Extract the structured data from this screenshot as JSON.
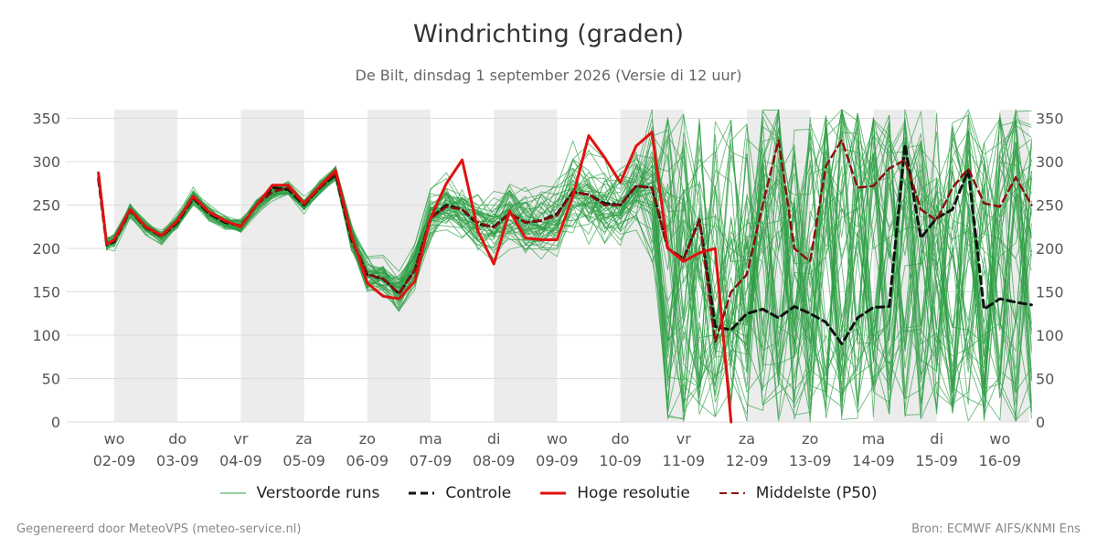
{
  "title": "Windrichting (graden)",
  "subtitle": "De Bilt, dinsdag  1 september 2026 (Versie di 12 uur)",
  "footer_left": "Gegenereerd door MeteoVPS (meteo-service.nl)",
  "footer_right": "Bron: ECMWF AIFS/KNMI Ens",
  "colors": {
    "ensemble": "#2e9e45",
    "control": "#111111",
    "high_res": "#e0120f",
    "median": "#8b0f0f",
    "weekend_band": "#ececec",
    "grid": "#dddddd"
  },
  "legend": [
    {
      "label": "Verstoorde runs",
      "style": "ensemble"
    },
    {
      "label": "Controle",
      "style": "control"
    },
    {
      "label": "Hoge resolutie",
      "style": "high_res"
    },
    {
      "label": "Middelste (P50)",
      "style": "median"
    }
  ],
  "chart_data": {
    "type": "line",
    "title": "Windrichting (graden)",
    "ylim": [
      0,
      360
    ],
    "yticks": [
      0,
      50,
      100,
      150,
      200,
      250,
      300,
      350
    ],
    "xlim": [
      -0.25,
      14.5
    ],
    "x_unit": "days since 02-09 00:00",
    "x_ticks": [
      {
        "day": "wo",
        "date": "02-09"
      },
      {
        "day": "do",
        "date": "03-09"
      },
      {
        "day": "vr",
        "date": "04-09"
      },
      {
        "day": "za",
        "date": "05-09"
      },
      {
        "day": "zo",
        "date": "06-09"
      },
      {
        "day": "ma",
        "date": "07-09"
      },
      {
        "day": "di",
        "date": "08-09"
      },
      {
        "day": "wo",
        "date": "09-09"
      },
      {
        "day": "do",
        "date": "10-09"
      },
      {
        "day": "vr",
        "date": "11-09"
      },
      {
        "day": "za",
        "date": "12-09"
      },
      {
        "day": "zo",
        "date": "13-09"
      },
      {
        "day": "ma",
        "date": "14-09"
      },
      {
        "day": "di",
        "date": "15-09"
      },
      {
        "day": "wo",
        "date": "16-09"
      }
    ],
    "shaded_days": [
      0,
      2,
      4,
      6,
      8,
      10,
      12,
      14
    ],
    "grid": true,
    "legend_position": "bottom",
    "series": [
      {
        "name": "Hoge resolutie",
        "style": "solid",
        "x": [
          -0.25,
          -0.12,
          0,
          0.25,
          0.5,
          0.75,
          1,
          1.25,
          1.5,
          1.75,
          2,
          2.25,
          2.5,
          2.75,
          3,
          3.25,
          3.5,
          3.75,
          4,
          4.25,
          4.5,
          4.75,
          5,
          5.25,
          5.5,
          5.75,
          6,
          6.25,
          6.5,
          6.75,
          7,
          7.25,
          7.5,
          7.75,
          8,
          8.25,
          8.5,
          8.75,
          9,
          9.25,
          9.5,
          9.75
        ],
        "values": [
          287,
          205,
          210,
          245,
          225,
          215,
          232,
          260,
          242,
          232,
          225,
          250,
          273,
          273,
          252,
          272,
          290,
          215,
          160,
          145,
          142,
          162,
          235,
          275,
          302,
          220,
          182,
          243,
          212,
          210,
          210,
          260,
          330,
          305,
          276,
          318,
          334,
          200,
          185,
          195,
          200,
          0
        ]
      },
      {
        "name": "Controle",
        "style": "dashed",
        "x": [
          -0.25,
          -0.12,
          0,
          0.25,
          0.5,
          0.75,
          1,
          1.25,
          1.5,
          1.75,
          2,
          2.25,
          2.5,
          2.75,
          3,
          3.25,
          3.5,
          3.75,
          4,
          4.25,
          4.5,
          4.75,
          5,
          5.25,
          5.5,
          5.75,
          6,
          6.25,
          6.5,
          6.75,
          7,
          7.25,
          7.5,
          7.75,
          8,
          8.25,
          8.5,
          8.75,
          9,
          9.25,
          9.5,
          9.75,
          10,
          10.25,
          10.5,
          10.75,
          11,
          11.25,
          11.5,
          11.75,
          12,
          12.25,
          12.5,
          12.75,
          13,
          13.25,
          13.5,
          13.75,
          14,
          14.25,
          14.5
        ],
        "values": [
          280,
          204,
          208,
          244,
          224,
          214,
          230,
          258,
          240,
          230,
          226,
          250,
          270,
          268,
          250,
          270,
          285,
          210,
          170,
          165,
          148,
          175,
          235,
          250,
          245,
          228,
          225,
          240,
          230,
          232,
          240,
          265,
          262,
          252,
          250,
          272,
          270,
          200,
          188,
          233,
          110,
          106,
          125,
          130,
          120,
          133,
          125,
          115,
          90,
          120,
          132,
          133,
          320,
          212,
          235,
          245,
          290,
          130,
          142,
          138,
          135
        ]
      },
      {
        "name": "Middelste (P50)",
        "style": "dashed",
        "x": [
          -0.25,
          -0.12,
          0,
          0.25,
          0.5,
          0.75,
          1,
          1.25,
          1.5,
          1.75,
          2,
          2.25,
          2.5,
          2.75,
          3,
          3.25,
          3.5,
          3.75,
          4,
          4.25,
          4.5,
          4.75,
          5,
          5.25,
          5.5,
          5.75,
          6,
          6.25,
          6.5,
          6.75,
          7,
          7.25,
          7.5,
          7.75,
          8,
          8.25,
          8.5,
          8.75,
          9,
          9.25,
          9.5,
          9.75,
          10,
          10.25,
          10.5,
          10.75,
          11,
          11.25,
          11.5,
          11.75,
          12,
          12.25,
          12.5,
          12.75,
          13,
          13.25,
          13.5,
          13.75,
          14,
          14.25,
          14.5
        ],
        "values": [
          282,
          205,
          209,
          244,
          224,
          214,
          231,
          259,
          241,
          231,
          226,
          250,
          265,
          270,
          251,
          270,
          287,
          212,
          170,
          165,
          148,
          175,
          235,
          248,
          245,
          230,
          224,
          240,
          230,
          232,
          238,
          265,
          262,
          250,
          250,
          272,
          270,
          200,
          188,
          233,
          92,
          150,
          170,
          250,
          325,
          200,
          185,
          295,
          325,
          270,
          272,
          292,
          302,
          245,
          232,
          270,
          292,
          252,
          248,
          282,
          250
        ]
      }
    ]
  }
}
